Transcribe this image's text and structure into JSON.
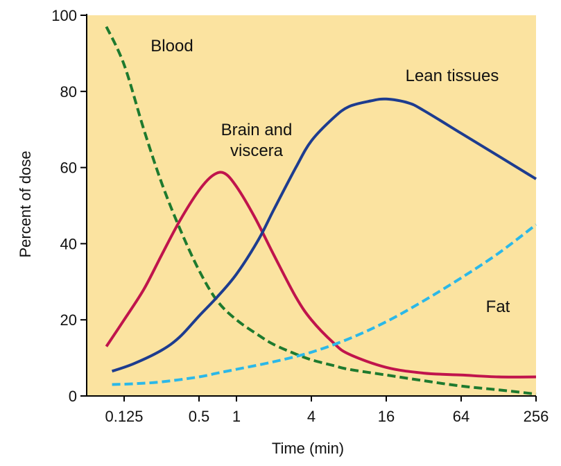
{
  "chart_data": {
    "type": "line",
    "title": "",
    "xlabel": "Time (min)",
    "ylabel": "Percent of dose",
    "x_scale": "log2",
    "x_ticks": [
      "0.125",
      "0.5",
      "1",
      "4",
      "16",
      "64",
      "256"
    ],
    "x_tick_values": [
      0.125,
      0.5,
      1,
      4,
      16,
      64,
      256
    ],
    "y_ticks": [
      "0",
      "20",
      "40",
      "60",
      "80",
      "100"
    ],
    "y_tick_values": [
      0,
      20,
      40,
      60,
      80,
      100
    ],
    "xlim": [
      0.0625,
      256
    ],
    "ylim": [
      0,
      100
    ],
    "grid": false,
    "background_color": "#FBE3A0",
    "series": [
      {
        "name": "Blood",
        "label_lines": [
          "Blood"
        ],
        "color": "#1E7A2E",
        "dash": true,
        "points": [
          [
            0.09,
            97
          ],
          [
            0.125,
            87
          ],
          [
            0.18,
            70
          ],
          [
            0.25,
            56
          ],
          [
            0.35,
            44
          ],
          [
            0.5,
            33
          ],
          [
            0.7,
            25
          ],
          [
            1,
            20
          ],
          [
            1.5,
            16
          ],
          [
            2,
            13.5
          ],
          [
            3,
            11
          ],
          [
            4,
            9.5
          ],
          [
            6,
            8
          ],
          [
            8,
            7
          ],
          [
            16,
            5.5
          ],
          [
            32,
            4
          ],
          [
            64,
            2.6
          ],
          [
            128,
            1.6
          ],
          [
            256,
            0.5
          ]
        ]
      },
      {
        "name": "Brain and viscera",
        "label_lines": [
          "Brain and",
          "viscera"
        ],
        "color": "#C0144C",
        "dash": false,
        "points": [
          [
            0.09,
            13
          ],
          [
            0.125,
            20
          ],
          [
            0.18,
            28
          ],
          [
            0.25,
            37
          ],
          [
            0.35,
            46
          ],
          [
            0.5,
            54
          ],
          [
            0.65,
            58
          ],
          [
            0.8,
            58.5
          ],
          [
            1,
            55
          ],
          [
            1.4,
            47
          ],
          [
            2,
            37
          ],
          [
            3,
            26
          ],
          [
            4,
            20
          ],
          [
            6,
            14
          ],
          [
            8,
            11
          ],
          [
            16,
            7.5
          ],
          [
            32,
            6
          ],
          [
            64,
            5.5
          ],
          [
            128,
            5
          ],
          [
            256,
            5
          ]
        ]
      },
      {
        "name": "Lean tissues",
        "label_lines": [
          "Lean tissues"
        ],
        "color": "#1D3C8F",
        "dash": false,
        "points": [
          [
            0.1,
            6.5
          ],
          [
            0.15,
            8.5
          ],
          [
            0.25,
            12
          ],
          [
            0.35,
            15.5
          ],
          [
            0.5,
            21
          ],
          [
            0.7,
            26
          ],
          [
            1,
            32
          ],
          [
            1.5,
            41
          ],
          [
            2,
            49
          ],
          [
            3,
            60
          ],
          [
            4,
            67
          ],
          [
            6,
            73
          ],
          [
            8,
            76
          ],
          [
            12,
            77.5
          ],
          [
            16,
            78
          ],
          [
            24,
            77
          ],
          [
            32,
            75
          ],
          [
            64,
            69
          ],
          [
            128,
            63
          ],
          [
            256,
            57
          ]
        ]
      },
      {
        "name": "Fat",
        "label_lines": [
          "Fat"
        ],
        "color": "#2BB8E8",
        "dash": true,
        "points": [
          [
            0.1,
            3
          ],
          [
            0.15,
            3.2
          ],
          [
            0.25,
            3.7
          ],
          [
            0.5,
            5
          ],
          [
            0.7,
            6
          ],
          [
            1,
            7
          ],
          [
            2,
            9
          ],
          [
            4,
            11.5
          ],
          [
            8,
            15
          ],
          [
            16,
            19.5
          ],
          [
            32,
            25
          ],
          [
            64,
            31
          ],
          [
            128,
            37.5
          ],
          [
            256,
            45
          ]
        ]
      }
    ]
  }
}
